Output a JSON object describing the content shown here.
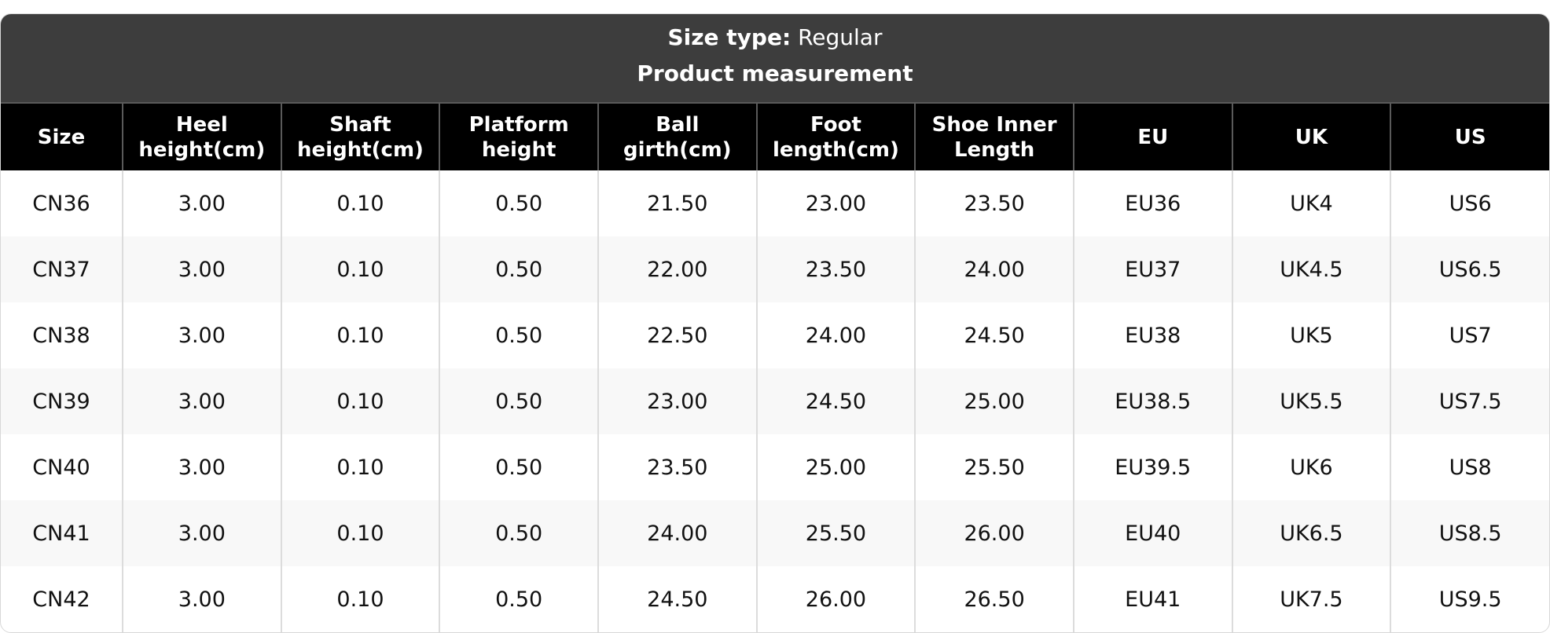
{
  "header": {
    "size_type_label": "Size type:",
    "size_type_value": "Regular",
    "title": "Product measurement"
  },
  "table": {
    "columns": [
      [
        "Size"
      ],
      [
        "Heel",
        "height(cm)"
      ],
      [
        "Shaft",
        "height(cm)"
      ],
      [
        "Platform",
        "height"
      ],
      [
        "Ball",
        "girth(cm)"
      ],
      [
        "Foot",
        "length(cm)"
      ],
      [
        "Shoe Inner",
        "Length"
      ],
      [
        "EU"
      ],
      [
        "UK"
      ],
      [
        "US"
      ]
    ],
    "rows": [
      [
        "CN36",
        "3.00",
        "0.10",
        "0.50",
        "21.50",
        "23.00",
        "23.50",
        "EU36",
        "UK4",
        "US6"
      ],
      [
        "CN37",
        "3.00",
        "0.10",
        "0.50",
        "22.00",
        "23.50",
        "24.00",
        "EU37",
        "UK4.5",
        "US6.5"
      ],
      [
        "CN38",
        "3.00",
        "0.10",
        "0.50",
        "22.50",
        "24.00",
        "24.50",
        "EU38",
        "UK5",
        "US7"
      ],
      [
        "CN39",
        "3.00",
        "0.10",
        "0.50",
        "23.00",
        "24.50",
        "25.00",
        "EU38.5",
        "UK5.5",
        "US7.5"
      ],
      [
        "CN40",
        "3.00",
        "0.10",
        "0.50",
        "23.50",
        "25.00",
        "25.50",
        "EU39.5",
        "UK6",
        "US8"
      ],
      [
        "CN41",
        "3.00",
        "0.10",
        "0.50",
        "24.00",
        "25.50",
        "26.00",
        "EU40",
        "UK6.5",
        "US8.5"
      ],
      [
        "CN42",
        "3.00",
        "0.10",
        "0.50",
        "24.50",
        "26.00",
        "26.50",
        "EU41",
        "UK7.5",
        "US9.5"
      ]
    ]
  },
  "colors": {
    "title_bg": "#3d3d3d",
    "header_bg": "#000000",
    "alt_row_bg": "#f8f8f8"
  }
}
